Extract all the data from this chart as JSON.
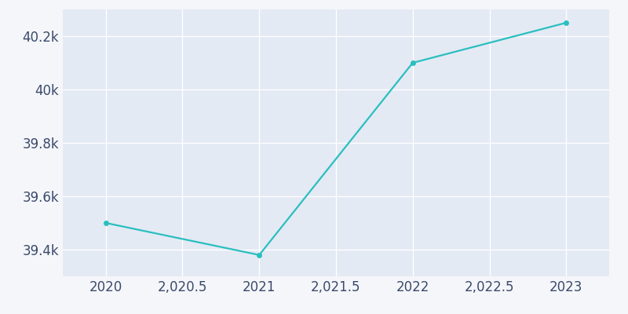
{
  "x": [
    2020,
    2021,
    2022,
    2023
  ],
  "y": [
    39500,
    39380,
    40100,
    40250
  ],
  "line_color": "#2abfbf",
  "marker": "o",
  "marker_size": 4,
  "plot_bg_color": "#e4eaf4",
  "figure_bg_color": "#f5f6fa",
  "grid_color": "#ffffff",
  "ylim": [
    39300,
    40300
  ],
  "xlim": [
    2019.72,
    2023.28
  ],
  "tick_color": "#3a4a6a",
  "tick_fontsize": 12,
  "yticks": [
    39400,
    39600,
    39800,
    40000,
    40200
  ],
  "xticks": [
    2020,
    2020.5,
    2021,
    2021.5,
    2022,
    2022.5,
    2023
  ]
}
